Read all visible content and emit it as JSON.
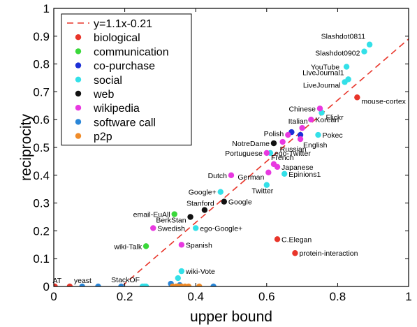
{
  "chart_data": {
    "type": "scatter",
    "xlabel": "upper bound",
    "ylabel": "reciprocity",
    "xlim": [
      0,
      1
    ],
    "ylim": [
      0,
      1
    ],
    "xticks": [
      "0",
      "0.2",
      "0.4",
      "0.6",
      "0.8",
      "1"
    ],
    "yticks": [
      "0",
      "0.1",
      "0.2",
      "0.3",
      "0.4",
      "0.5",
      "0.6",
      "0.7",
      "0.8",
      "0.9",
      "1"
    ],
    "grid": false,
    "legend_position": "top-left",
    "fit_line": {
      "label": "y=1.1x-0.21",
      "slope": 1.1,
      "intercept": -0.21,
      "color": "#e8352a"
    },
    "series": [
      {
        "name": "biological",
        "color": "#e8352a",
        "points": [
          {
            "x": 0.003,
            "y": 0.0,
            "label": "AT"
          },
          {
            "x": 0.045,
            "y": 0.0,
            "label": "yeast"
          },
          {
            "x": 0.855,
            "y": 0.68,
            "label": "mouse-cortex"
          },
          {
            "x": 0.63,
            "y": 0.17,
            "label": "C.Elegan"
          },
          {
            "x": 0.68,
            "y": 0.12,
            "label": "protein-interaction"
          }
        ]
      },
      {
        "name": "communication",
        "color": "#3ad83a",
        "points": [
          {
            "x": 0.34,
            "y": 0.26,
            "label": "email-EuAll"
          },
          {
            "x": 0.26,
            "y": 0.145,
            "label": "wiki-Talk"
          }
        ]
      },
      {
        "name": "co-purchase",
        "color": "#1c2fd6",
        "points": [
          {
            "x": 0.67,
            "y": 0.555,
            "label": ""
          },
          {
            "x": 0.695,
            "y": 0.545,
            "label": ""
          }
        ]
      },
      {
        "name": "social",
        "color": "#33e0e8",
        "points": [
          {
            "x": 0.89,
            "y": 0.87,
            "label": "Slashdot0811"
          },
          {
            "x": 0.875,
            "y": 0.845,
            "label": "Slashdot0902"
          },
          {
            "x": 0.825,
            "y": 0.79,
            "label": "YouTube"
          },
          {
            "x": 0.83,
            "y": 0.745,
            "label": "LiveJournal1"
          },
          {
            "x": 0.82,
            "y": 0.735,
            "label": "LiveJournal"
          },
          {
            "x": 0.755,
            "y": 0.625,
            "label": "Flickr"
          },
          {
            "x": 0.745,
            "y": 0.545,
            "label": "Pokec"
          },
          {
            "x": 0.61,
            "y": 0.48,
            "label": "ego-Twitter"
          },
          {
            "x": 0.65,
            "y": 0.405,
            "label": "Epinions1"
          },
          {
            "x": 0.6,
            "y": 0.365,
            "label": "Twitter"
          },
          {
            "x": 0.47,
            "y": 0.34,
            "label": "Google+"
          },
          {
            "x": 0.4,
            "y": 0.21,
            "label": "ego-Google+"
          },
          {
            "x": 0.36,
            "y": 0.055,
            "label": "wiki-Vote"
          },
          {
            "x": 0.35,
            "y": 0.03,
            "label": ""
          },
          {
            "x": 0.25,
            "y": 0.0,
            "label": "StackOF"
          },
          {
            "x": 0.255,
            "y": 0.0,
            "label": ""
          },
          {
            "x": 0.26,
            "y": 0.0,
            "label": ""
          }
        ]
      },
      {
        "name": "web",
        "color": "#111111",
        "points": [
          {
            "x": 0.62,
            "y": 0.515,
            "label": "NotreDame"
          },
          {
            "x": 0.48,
            "y": 0.305,
            "label": "Google"
          },
          {
            "x": 0.425,
            "y": 0.275,
            "label": "Stanford"
          },
          {
            "x": 0.385,
            "y": 0.25,
            "label": "BerkStan"
          }
        ]
      },
      {
        "name": "wikipedia",
        "color": "#e838e0",
        "points": [
          {
            "x": 0.75,
            "y": 0.64,
            "label": "Chinese"
          },
          {
            "x": 0.725,
            "y": 0.6,
            "label": "Korean"
          },
          {
            "x": 0.7,
            "y": 0.57,
            "label": "Italian"
          },
          {
            "x": 0.66,
            "y": 0.545,
            "label": "Polish"
          },
          {
            "x": 0.695,
            "y": 0.53,
            "label": "English"
          },
          {
            "x": 0.645,
            "y": 0.52,
            "label": "Russian"
          },
          {
            "x": 0.6,
            "y": 0.48,
            "label": "Portuguese"
          },
          {
            "x": 0.62,
            "y": 0.44,
            "label": "French"
          },
          {
            "x": 0.63,
            "y": 0.43,
            "label": "Japanese"
          },
          {
            "x": 0.605,
            "y": 0.41,
            "label": "German"
          },
          {
            "x": 0.5,
            "y": 0.4,
            "label": "Dutch"
          },
          {
            "x": 0.28,
            "y": 0.21,
            "label": "Swedish"
          },
          {
            "x": 0.36,
            "y": 0.15,
            "label": "Spanish"
          }
        ]
      },
      {
        "name": "software call",
        "color": "#2a86d8",
        "points": [
          {
            "x": 0.08,
            "y": 0.0,
            "label": ""
          },
          {
            "x": 0.125,
            "y": 0.0,
            "label": ""
          },
          {
            "x": 0.19,
            "y": 0.0,
            "label": ""
          },
          {
            "x": 0.33,
            "y": 0.01,
            "label": ""
          },
          {
            "x": 0.355,
            "y": 0.005,
            "label": ""
          },
          {
            "x": 0.45,
            "y": 0.0,
            "label": ""
          }
        ]
      },
      {
        "name": "p2p",
        "color": "#f08c2a",
        "points": [
          {
            "x": 0.335,
            "y": 0.0,
            "label": ""
          },
          {
            "x": 0.345,
            "y": 0.0,
            "label": ""
          },
          {
            "x": 0.35,
            "y": 0.0,
            "label": ""
          },
          {
            "x": 0.36,
            "y": 0.0,
            "label": ""
          },
          {
            "x": 0.37,
            "y": 0.0,
            "label": ""
          },
          {
            "x": 0.38,
            "y": 0.0,
            "label": ""
          },
          {
            "x": 0.41,
            "y": 0.0,
            "label": ""
          }
        ]
      }
    ]
  }
}
